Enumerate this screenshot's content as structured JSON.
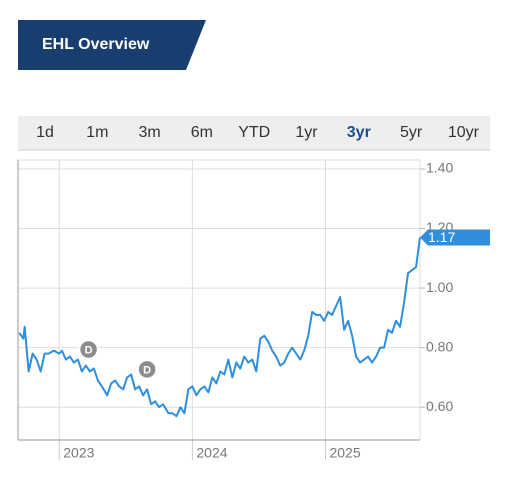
{
  "header": {
    "title": "EHL Overview"
  },
  "tabs": {
    "labels": [
      "1d",
      "1m",
      "3m",
      "6m",
      "YTD",
      "1yr",
      "3yr",
      "5yr",
      "10yr"
    ],
    "selected": 6
  },
  "chart_data": {
    "type": "line",
    "x": [
      2022.7,
      2022.73,
      2022.74,
      2022.77,
      2022.8,
      2022.83,
      2022.86,
      2022.89,
      2022.92,
      2022.96,
      2023.0,
      2023.02,
      2023.05,
      2023.08,
      2023.11,
      2023.14,
      2023.17,
      2023.2,
      2023.23,
      2023.26,
      2023.29,
      2023.32,
      2023.36,
      2023.39,
      2023.42,
      2023.45,
      2023.48,
      2023.51,
      2023.54,
      2023.57,
      2023.6,
      2023.63,
      2023.66,
      2023.69,
      2023.72,
      2023.75,
      2023.78,
      2023.82,
      2023.85,
      2023.88,
      2023.91,
      2023.94,
      2023.97,
      2024.0,
      2024.03,
      2024.06,
      2024.09,
      2024.12,
      2024.15,
      2024.18,
      2024.21,
      2024.24,
      2024.27,
      2024.3,
      2024.33,
      2024.36,
      2024.39,
      2024.42,
      2024.45,
      2024.48,
      2024.51,
      2024.54,
      2024.57,
      2024.6,
      2024.63,
      2024.66,
      2024.69,
      2024.72,
      2024.75,
      2024.78,
      2024.81,
      2024.84,
      2024.87,
      2024.9,
      2024.93,
      2024.96,
      2024.99,
      2025.02,
      2025.05,
      2025.08,
      2025.11,
      2025.14,
      2025.17,
      2025.2,
      2025.23,
      2025.26,
      2025.29,
      2025.32,
      2025.35,
      2025.38,
      2025.41,
      2025.44,
      2025.47,
      2025.5,
      2025.53,
      2025.56,
      2025.59,
      2025.62,
      2025.65,
      2025.68,
      2025.71
    ],
    "series": [
      {
        "color": "#2f8fdc",
        "values": [
          0.85,
          0.83,
          0.87,
          0.72,
          0.78,
          0.76,
          0.72,
          0.78,
          0.78,
          0.79,
          0.78,
          0.79,
          0.76,
          0.77,
          0.75,
          0.76,
          0.72,
          0.74,
          0.72,
          0.73,
          0.69,
          0.67,
          0.64,
          0.68,
          0.69,
          0.67,
          0.66,
          0.7,
          0.71,
          0.66,
          0.67,
          0.64,
          0.66,
          0.61,
          0.62,
          0.6,
          0.61,
          0.58,
          0.58,
          0.57,
          0.6,
          0.58,
          0.66,
          0.67,
          0.64,
          0.66,
          0.67,
          0.65,
          0.7,
          0.68,
          0.72,
          0.71,
          0.76,
          0.7,
          0.75,
          0.73,
          0.77,
          0.75,
          0.76,
          0.72,
          0.83,
          0.84,
          0.82,
          0.79,
          0.77,
          0.74,
          0.75,
          0.78,
          0.8,
          0.78,
          0.76,
          0.79,
          0.84,
          0.92,
          0.91,
          0.91,
          0.89,
          0.92,
          0.91,
          0.94,
          0.97,
          0.86,
          0.89,
          0.84,
          0.77,
          0.75,
          0.76,
          0.77,
          0.75,
          0.77,
          0.8,
          0.8,
          0.86,
          0.85,
          0.89,
          0.87,
          0.95,
          1.05,
          1.06,
          1.07,
          1.17
        ]
      }
    ],
    "xlim": [
      2022.69,
      2025.71
    ],
    "ylim": [
      0.49,
      1.43
    ],
    "xticks": [
      2023,
      2024,
      2025
    ],
    "yticks": [
      {
        "value": 0.6,
        "label": "0.60"
      },
      {
        "value": 0.8,
        "label": "0.80"
      },
      {
        "value": 1.0,
        "label": "1.00"
      },
      {
        "value": 1.2,
        "label": "1.20"
      },
      {
        "value": 1.4,
        "label": "1.40"
      }
    ],
    "grid": true,
    "dividends": {
      "label": "D",
      "x": [
        2023.22,
        2023.66
      ]
    }
  }
}
